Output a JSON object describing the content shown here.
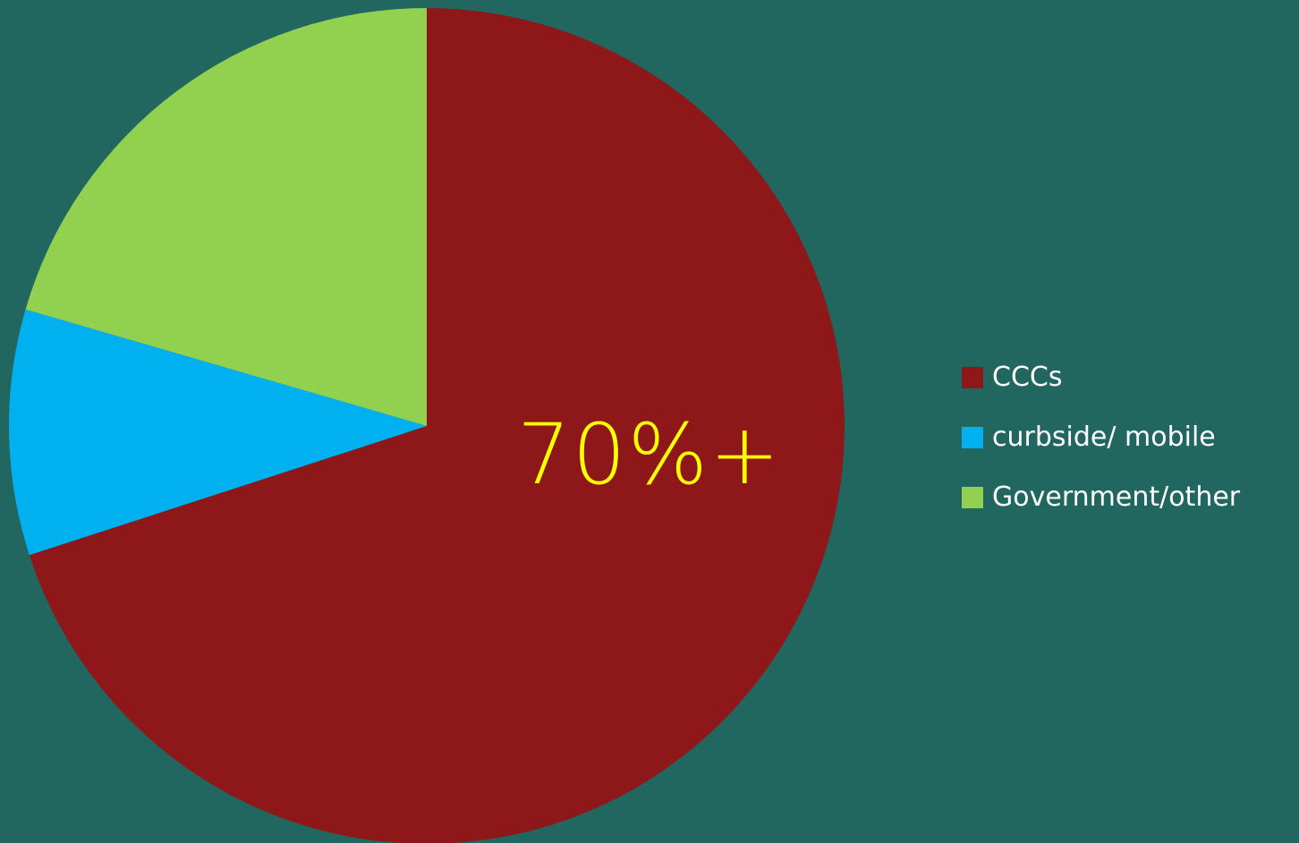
{
  "colors": {
    "background": "#216760",
    "slice_label": "#ffff00"
  },
  "chart_data": {
    "type": "pie",
    "title": "",
    "slices": [
      {
        "name": "CCCs",
        "value": 70,
        "color": "#8e1719"
      },
      {
        "name": "curbside/ mobile",
        "value": 9.5,
        "color": "#00b0ef"
      },
      {
        "name": "Government/other",
        "value": 20.5,
        "color": "#92d050"
      }
    ],
    "data_label": "70%+",
    "legend": {
      "placement": "right",
      "entries": [
        "CCCs",
        "curbside/ mobile",
        "Government/other"
      ]
    }
  }
}
